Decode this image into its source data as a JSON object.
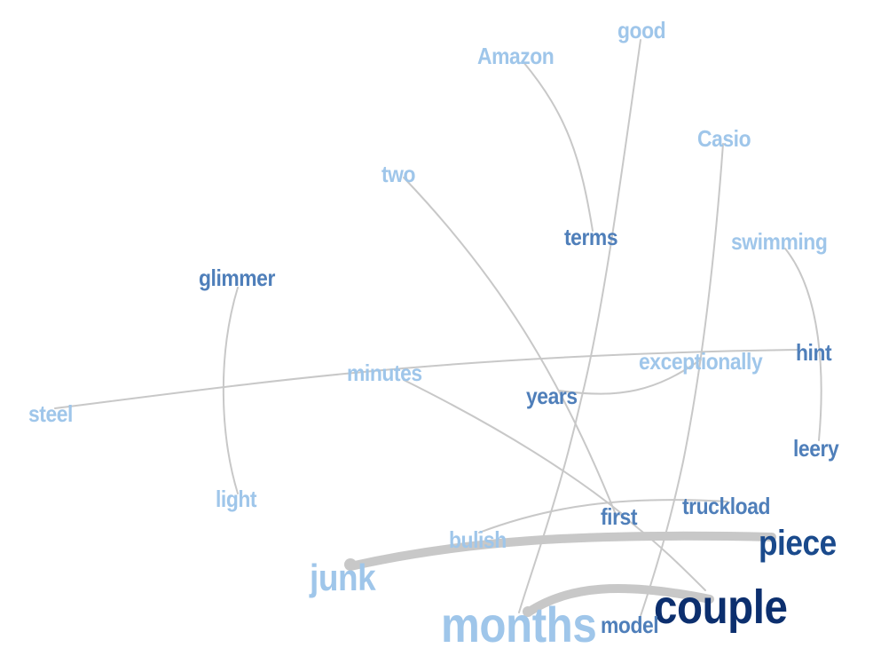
{
  "colors": {
    "edge": "#c8c8c8",
    "pale": "#9fc6ea",
    "light": "#6d9fd3",
    "medium": "#4f7fba",
    "dark": "#1a4a8c",
    "darkest": "#0c2f6e"
  },
  "words": {
    "good": "good",
    "amazon": "Amazon",
    "casio": "Casio",
    "two": "two",
    "terms": "terms",
    "swimming": "swimming",
    "glimmer": "glimmer",
    "hint": "hint",
    "minutes": "minutes",
    "exceptionally": "exceptionally",
    "years": "years",
    "steel": "steel",
    "leery": "leery",
    "light": "light",
    "truckload": "truckload",
    "first": "first",
    "bulish": "bulish",
    "piece": "piece",
    "junk": "junk",
    "couple": "couple",
    "months": "months",
    "model": "model"
  }
}
